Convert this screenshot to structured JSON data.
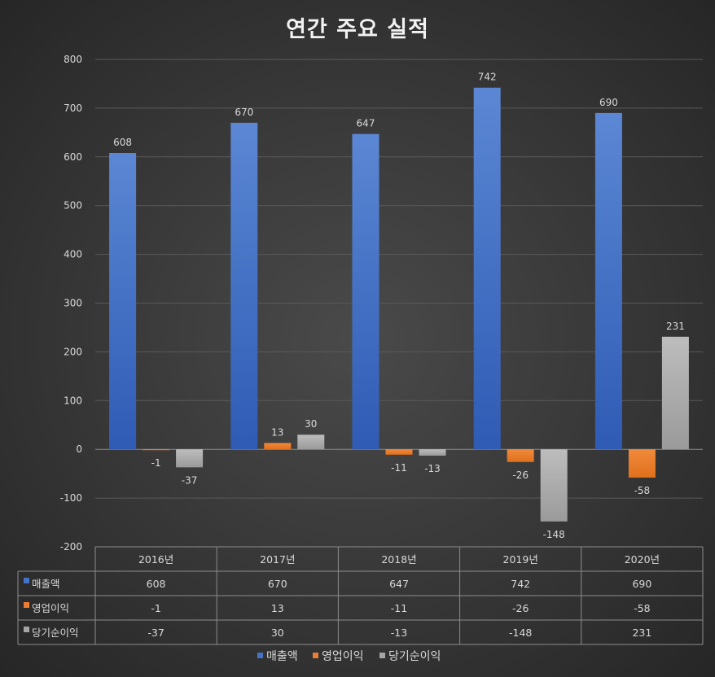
{
  "chart_data": {
    "type": "bar",
    "title": "연간 주요 실적",
    "categories": [
      "2016년",
      "2017년",
      "2018년",
      "2019년",
      "2020년"
    ],
    "series": [
      {
        "name": "매출액",
        "color": "#4472c4",
        "values": [
          608,
          670,
          647,
          742,
          690
        ]
      },
      {
        "name": "영업이익",
        "color": "#ed7d31",
        "values": [
          -1,
          13,
          -11,
          -26,
          -58
        ]
      },
      {
        "name": "당기순이익",
        "color": "#a5a5a5",
        "values": [
          -37,
          30,
          -13,
          -148,
          231
        ]
      }
    ],
    "ylim": [
      -200,
      800
    ],
    "yticks": [
      -200,
      -100,
      0,
      100,
      200,
      300,
      400,
      500,
      600,
      700,
      800
    ],
    "grid": true,
    "legend_position": "bottom",
    "data_table": true
  }
}
